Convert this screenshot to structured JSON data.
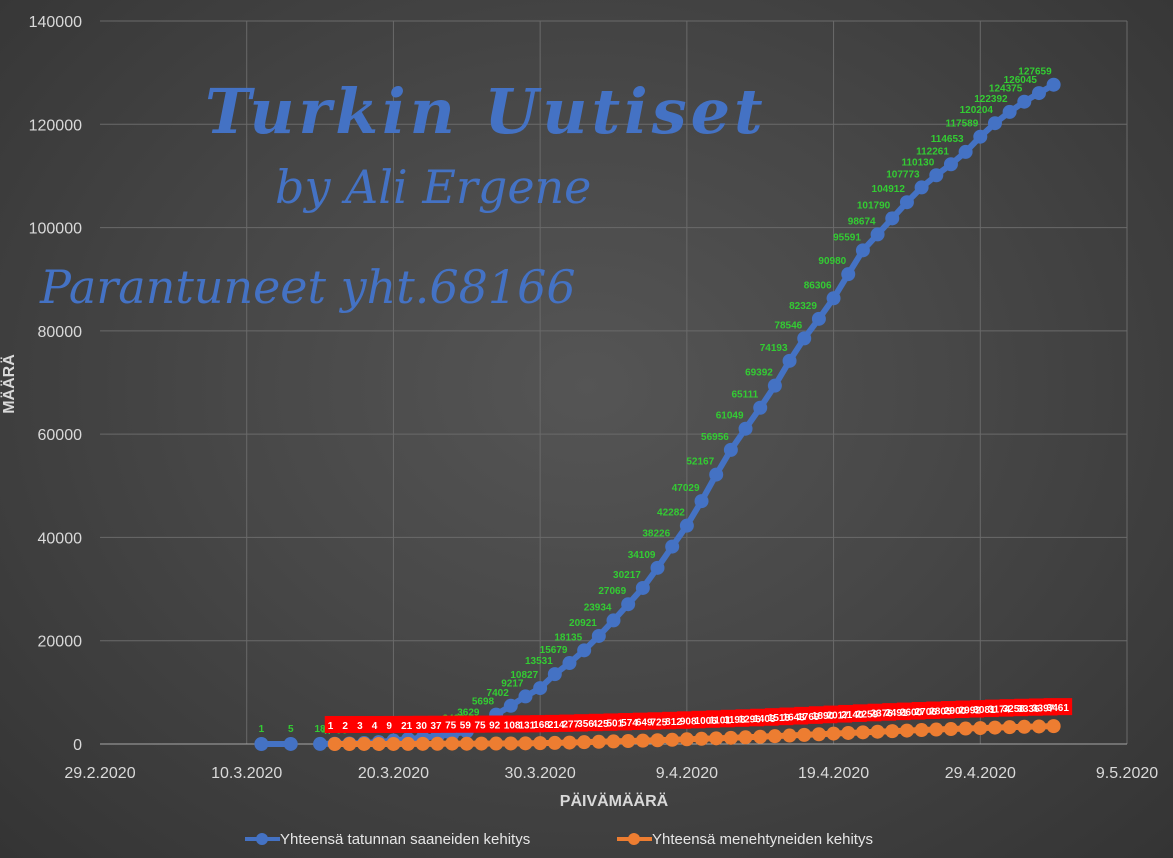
{
  "chart_data": {
    "type": "line",
    "xlabel": "PÄIVÄMÄÄRÄ",
    "ylabel": "MÄÄRÄ",
    "x_ticks": [
      "29.2.2020",
      "10.3.2020",
      "20.3.2020",
      "30.3.2020",
      "9.4.2020",
      "19.4.2020",
      "29.4.2020",
      "9.5.2020"
    ],
    "y_ticks": [
      "0",
      "20000",
      "40000",
      "60000",
      "80000",
      "100000",
      "120000",
      "140000"
    ],
    "ylim": [
      0,
      140000
    ],
    "grid": true,
    "legend_position": "bottom",
    "watermark": {
      "line1": "Turkin Uutiset",
      "line2": "by Ali Ergene",
      "line3": "Parantuneet yht.68166"
    },
    "series": [
      {
        "name": "Yhteensä tatunnan saaneiden kehitys",
        "color": "#4472c4",
        "label_color": "#33cc33",
        "points": [
          {
            "x": "2020-03-11",
            "y": 1
          },
          {
            "x": "2020-03-13",
            "y": 5
          },
          {
            "x": "2020-03-15",
            "y": 18
          },
          {
            "x": "2020-03-16",
            "y": 47
          },
          {
            "x": "2020-03-17",
            "y": 98
          },
          {
            "x": "2020-03-18",
            "y": 191
          },
          {
            "x": "2020-03-19",
            "y": 359
          },
          {
            "x": "2020-03-20",
            "y": 670
          },
          {
            "x": "2020-03-21",
            "y": 947
          },
          {
            "x": "2020-03-22",
            "y": 1236
          },
          {
            "x": "2020-03-23",
            "y": 1529
          },
          {
            "x": "2020-03-24",
            "y": 1872
          },
          {
            "x": "2020-03-25",
            "y": 2433
          },
          {
            "x": "2020-03-26",
            "y": 3629
          },
          {
            "x": "2020-03-27",
            "y": 5698
          },
          {
            "x": "2020-03-28",
            "y": 7402
          },
          {
            "x": "2020-03-29",
            "y": 9217
          },
          {
            "x": "2020-03-30",
            "y": 10827
          },
          {
            "x": "2020-03-31",
            "y": 13531
          },
          {
            "x": "2020-04-01",
            "y": 15679
          },
          {
            "x": "2020-04-02",
            "y": 18135
          },
          {
            "x": "2020-04-03",
            "y": 20921
          },
          {
            "x": "2020-04-04",
            "y": 23934
          },
          {
            "x": "2020-04-05",
            "y": 27069
          },
          {
            "x": "2020-04-06",
            "y": 30217
          },
          {
            "x": "2020-04-07",
            "y": 34109
          },
          {
            "x": "2020-04-08",
            "y": 38226
          },
          {
            "x": "2020-04-09",
            "y": 42282
          },
          {
            "x": "2020-04-10",
            "y": 47029
          },
          {
            "x": "2020-04-11",
            "y": 52167
          },
          {
            "x": "2020-04-12",
            "y": 56956
          },
          {
            "x": "2020-04-13",
            "y": 61049
          },
          {
            "x": "2020-04-14",
            "y": 65111
          },
          {
            "x": "2020-04-15",
            "y": 69392
          },
          {
            "x": "2020-04-16",
            "y": 74193
          },
          {
            "x": "2020-04-17",
            "y": 78546
          },
          {
            "x": "2020-04-18",
            "y": 82329
          },
          {
            "x": "2020-04-19",
            "y": 86306
          },
          {
            "x": "2020-04-20",
            "y": 90980
          },
          {
            "x": "2020-04-21",
            "y": 95591
          },
          {
            "x": "2020-04-22",
            "y": 98674
          },
          {
            "x": "2020-04-23",
            "y": 101790
          },
          {
            "x": "2020-04-24",
            "y": 104912
          },
          {
            "x": "2020-04-25",
            "y": 107773
          },
          {
            "x": "2020-04-26",
            "y": 110130
          },
          {
            "x": "2020-04-27",
            "y": 112261
          },
          {
            "x": "2020-04-28",
            "y": 114653
          },
          {
            "x": "2020-04-29",
            "y": 117589
          },
          {
            "x": "2020-04-30",
            "y": 120204
          },
          {
            "x": "2020-05-01",
            "y": 122392
          },
          {
            "x": "2020-05-02",
            "y": 124375
          },
          {
            "x": "2020-05-03",
            "y": 126045
          },
          {
            "x": "2020-05-04",
            "y": 127659
          }
        ]
      },
      {
        "name": "Yhteensä menehtyneiden kehitys",
        "color": "#ed7d31",
        "label_color": "#ffffff",
        "label_background": "#ff0000",
        "points": [
          {
            "x": "2020-03-16",
            "y": 1
          },
          {
            "x": "2020-03-17",
            "y": 2
          },
          {
            "x": "2020-03-18",
            "y": 3
          },
          {
            "x": "2020-03-19",
            "y": 4
          },
          {
            "x": "2020-03-20",
            "y": 9
          },
          {
            "x": "2020-03-21",
            "y": 21
          },
          {
            "x": "2020-03-22",
            "y": 30
          },
          {
            "x": "2020-03-23",
            "y": 37
          },
          {
            "x": "2020-03-24",
            "y": 75
          },
          {
            "x": "2020-03-25",
            "y": 59
          },
          {
            "x": "2020-03-26",
            "y": 75
          },
          {
            "x": "2020-03-27",
            "y": 92
          },
          {
            "x": "2020-03-28",
            "y": 108
          },
          {
            "x": "2020-03-29",
            "y": 131
          },
          {
            "x": "2020-03-30",
            "y": 168
          },
          {
            "x": "2020-03-31",
            "y": 214
          },
          {
            "x": "2020-04-01",
            "y": 277
          },
          {
            "x": "2020-04-02",
            "y": 356
          },
          {
            "x": "2020-04-03",
            "y": 425
          },
          {
            "x": "2020-04-04",
            "y": 501
          },
          {
            "x": "2020-04-05",
            "y": 574
          },
          {
            "x": "2020-04-06",
            "y": 649
          },
          {
            "x": "2020-04-07",
            "y": 725
          },
          {
            "x": "2020-04-08",
            "y": 812
          },
          {
            "x": "2020-04-09",
            "y": 908
          },
          {
            "x": "2020-04-10",
            "y": 1006
          },
          {
            "x": "2020-04-11",
            "y": 1101
          },
          {
            "x": "2020-04-12",
            "y": 1198
          },
          {
            "x": "2020-04-13",
            "y": 1296
          },
          {
            "x": "2020-04-14",
            "y": 1403
          },
          {
            "x": "2020-04-15",
            "y": 1518
          },
          {
            "x": "2020-04-16",
            "y": 1643
          },
          {
            "x": "2020-04-17",
            "y": 1769
          },
          {
            "x": "2020-04-18",
            "y": 1890
          },
          {
            "x": "2020-04-19",
            "y": 2017
          },
          {
            "x": "2020-04-20",
            "y": 2140
          },
          {
            "x": "2020-04-21",
            "y": 2259
          },
          {
            "x": "2020-04-22",
            "y": 2376
          },
          {
            "x": "2020-04-23",
            "y": 2491
          },
          {
            "x": "2020-04-24",
            "y": 2600
          },
          {
            "x": "2020-04-25",
            "y": 2706
          },
          {
            "x": "2020-04-26",
            "y": 2805
          },
          {
            "x": "2020-04-27",
            "y": 2900
          },
          {
            "x": "2020-04-28",
            "y": 2992
          },
          {
            "x": "2020-04-29",
            "y": 3081
          },
          {
            "x": "2020-04-30",
            "y": 3174
          },
          {
            "x": "2020-05-01",
            "y": 3258
          },
          {
            "x": "2020-05-02",
            "y": 3336
          },
          {
            "x": "2020-05-03",
            "y": 3397
          },
          {
            "x": "2020-05-04",
            "y": 3461
          }
        ]
      }
    ]
  }
}
